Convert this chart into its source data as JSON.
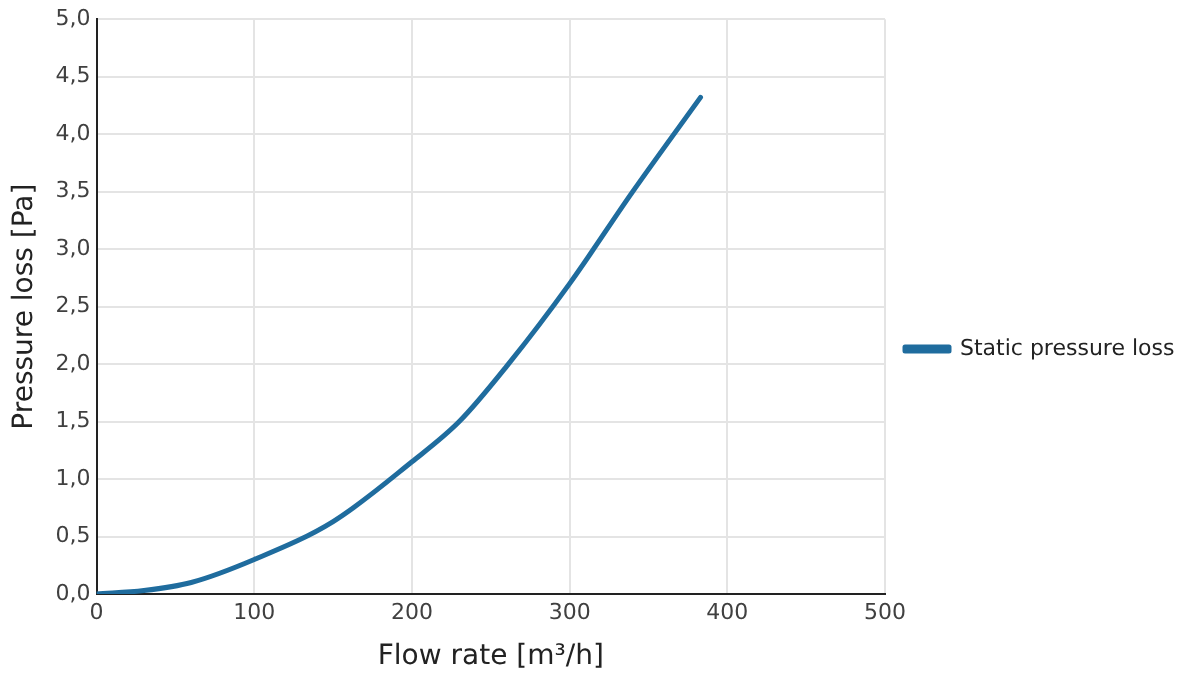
{
  "chart_data": {
    "type": "line",
    "xlabel": "Flow rate [m³/h]",
    "ylabel": "Pressure loss [Pa]",
    "x": [
      0,
      30,
      60,
      100,
      150,
      200,
      230,
      260,
      300,
      340,
      383
    ],
    "series": [
      {
        "name": "Static pressure loss",
        "color": "#1f6c9e",
        "values": [
          0,
          0.03,
          0.1,
          0.3,
          0.63,
          1.15,
          1.5,
          1.98,
          2.7,
          3.5,
          4.32
        ]
      }
    ],
    "xlim": [
      0,
      500
    ],
    "xticks": [
      0,
      100,
      200,
      300,
      400,
      500
    ],
    "ylim": [
      0,
      5
    ],
    "yticks": [
      {
        "value": 0,
        "label": "0,0"
      },
      {
        "value": 0.5,
        "label": "0,5"
      },
      {
        "value": 1,
        "label": "1,0"
      },
      {
        "value": 1.5,
        "label": "1,5"
      },
      {
        "value": 2,
        "label": "2,0"
      },
      {
        "value": 2.5,
        "label": "2,5"
      },
      {
        "value": 3,
        "label": "3,0"
      },
      {
        "value": 3.5,
        "label": "3,5"
      },
      {
        "value": 4,
        "label": "4,0"
      },
      {
        "value": 4.5,
        "label": "4,5"
      },
      {
        "value": 5,
        "label": "5,0"
      }
    ],
    "grid": true,
    "legend": "right",
    "marker": "none",
    "line_style": "solid"
  }
}
